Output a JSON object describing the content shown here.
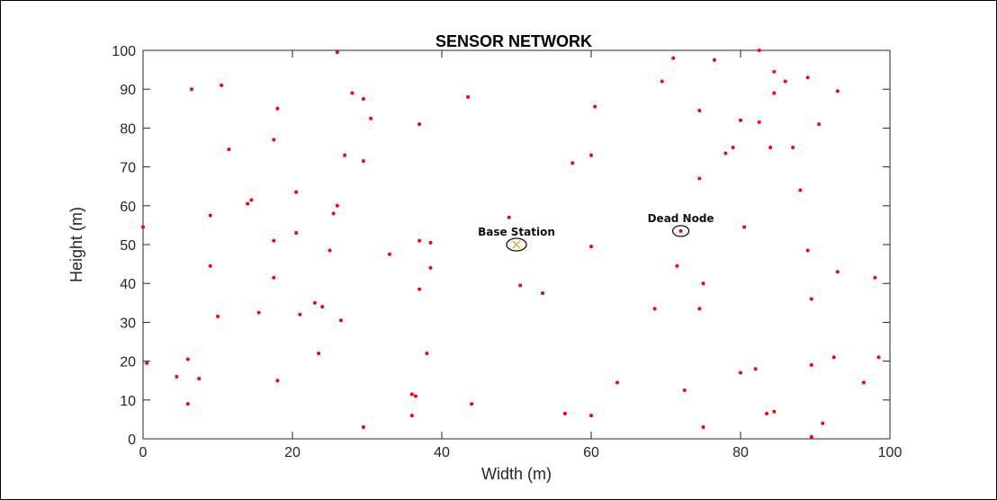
{
  "chart_data": {
    "type": "scatter",
    "title": "SENSOR NETWORK",
    "xlabel": "Width (m)",
    "ylabel": "Height (m)",
    "xlim": [
      0,
      100
    ],
    "ylim": [
      0,
      100
    ],
    "xticks": [
      0,
      20,
      40,
      60,
      80,
      100
    ],
    "yticks": [
      0,
      10,
      20,
      30,
      40,
      50,
      60,
      70,
      80,
      90,
      100
    ],
    "grid": false,
    "marker_color": "#ff0000",
    "series": [
      {
        "points": [
          [
            26,
            99.5
          ],
          [
            71,
            98
          ],
          [
            76.5,
            97.5
          ],
          [
            82.5,
            100
          ],
          [
            84.5,
            94.5
          ],
          [
            86,
            92
          ],
          [
            69.5,
            92
          ],
          [
            89,
            93
          ],
          [
            6.5,
            90
          ],
          [
            10.5,
            91
          ],
          [
            28,
            89
          ],
          [
            29.5,
            87.5
          ],
          [
            43.5,
            88
          ],
          [
            84.5,
            89
          ],
          [
            93,
            89.5
          ],
          [
            18,
            85
          ],
          [
            60.5,
            85.5
          ],
          [
            74.5,
            84.5
          ],
          [
            30.5,
            82.5
          ],
          [
            37,
            81
          ],
          [
            80,
            82
          ],
          [
            82.5,
            81.5
          ],
          [
            90.5,
            81
          ],
          [
            17.5,
            77
          ],
          [
            11.5,
            74.5
          ],
          [
            79,
            75
          ],
          [
            84,
            75
          ],
          [
            87,
            75
          ],
          [
            78,
            73.5
          ],
          [
            27,
            73
          ],
          [
            60,
            73
          ],
          [
            29.5,
            71.5
          ],
          [
            57.5,
            71
          ],
          [
            74.5,
            67
          ],
          [
            88,
            64
          ],
          [
            20.5,
            63.5
          ],
          [
            14.5,
            61.5
          ],
          [
            14,
            60.5
          ],
          [
            26,
            60
          ],
          [
            25.5,
            58
          ],
          [
            9,
            57.5
          ],
          [
            49,
            57
          ],
          [
            0,
            54.5
          ],
          [
            80.5,
            54.5
          ],
          [
            20.5,
            53
          ],
          [
            17.5,
            51
          ],
          [
            37,
            51
          ],
          [
            38.5,
            50.5
          ],
          [
            60,
            49.5
          ],
          [
            25,
            48.5
          ],
          [
            89,
            48.5
          ],
          [
            33,
            47.5
          ],
          [
            9,
            44.5
          ],
          [
            38.5,
            44
          ],
          [
            71.5,
            44.5
          ],
          [
            93,
            43
          ],
          [
            17.5,
            41.5
          ],
          [
            98,
            41.5
          ],
          [
            75,
            40
          ],
          [
            50.5,
            39.5
          ],
          [
            37,
            38.5
          ],
          [
            53.5,
            37.5
          ],
          [
            89.5,
            36
          ],
          [
            23,
            35
          ],
          [
            24,
            34
          ],
          [
            68.5,
            33.5
          ],
          [
            74.5,
            33.5
          ],
          [
            15.5,
            32.5
          ],
          [
            21,
            32
          ],
          [
            10,
            31.5
          ],
          [
            26.5,
            30.5
          ],
          [
            23.5,
            22
          ],
          [
            38,
            22
          ],
          [
            92.5,
            21
          ],
          [
            98.5,
            21
          ],
          [
            0.5,
            19.5
          ],
          [
            6,
            20.5
          ],
          [
            89.5,
            19
          ],
          [
            80,
            17
          ],
          [
            82,
            18
          ],
          [
            18,
            15
          ],
          [
            4.5,
            16
          ],
          [
            7.5,
            15.5
          ],
          [
            63.5,
            14.5
          ],
          [
            96.5,
            14.5
          ],
          [
            36,
            11.5
          ],
          [
            36.5,
            11
          ],
          [
            72.5,
            12.5
          ],
          [
            44,
            9
          ],
          [
            6,
            9
          ],
          [
            84.5,
            7
          ],
          [
            83.5,
            6.5
          ],
          [
            56.5,
            6.5
          ],
          [
            60,
            6
          ],
          [
            36,
            6
          ],
          [
            91,
            4
          ],
          [
            29.5,
            3
          ],
          [
            75,
            3
          ],
          [
            89.5,
            0.5
          ]
        ]
      }
    ],
    "annotations": [
      {
        "label": "Base Station",
        "x": 50,
        "y": 50,
        "marker": "x",
        "marker_color": "#e8a020",
        "circled": true
      },
      {
        "label": "Dead Node",
        "x": 72,
        "y": 53.5,
        "marker": "dot",
        "marker_color": "#ff0000",
        "circled": true
      }
    ]
  }
}
